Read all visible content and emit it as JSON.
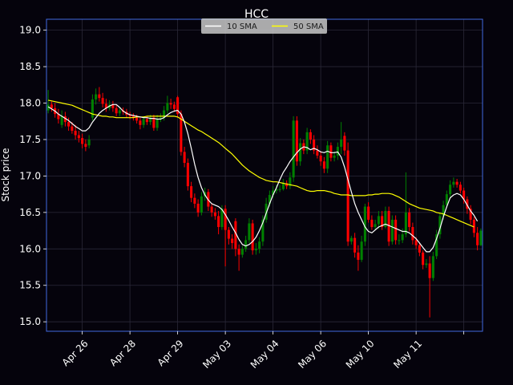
{
  "chart_data": {
    "type": "candlestick",
    "title": "HCC",
    "ylabel": "Stock price",
    "xlabel": "",
    "ylim": [
      14.87,
      19.15
    ],
    "yticks": [
      15.0,
      15.5,
      16.0,
      16.5,
      17.0,
      17.5,
      18.0,
      18.5,
      19.0
    ],
    "ytick_labels": [
      "15.0",
      "15.5",
      "16.0",
      "16.5",
      "17.0",
      "17.5",
      "18.0",
      "18.5",
      "19.0"
    ],
    "xticks": [
      {
        "label": "Apr 26",
        "index": 10
      },
      {
        "label": "Apr 28",
        "index": 24
      },
      {
        "label": "Apr 29",
        "index": 38
      },
      {
        "label": "May 03",
        "index": 52
      },
      {
        "label": "May 04",
        "index": 66
      },
      {
        "label": "May 06",
        "index": 80
      },
      {
        "label": "May 10",
        "index": 94
      },
      {
        "label": "May 11",
        "index": 108
      },
      {
        "label": "",
        "index": 122
      }
    ],
    "grid": true,
    "legend": {
      "location": "upper center",
      "entries": [
        {
          "name": "10 SMA",
          "color": "#ffffff"
        },
        {
          "name": "50 SMA",
          "color": "#ffff00"
        }
      ]
    },
    "colors": {
      "up": "#008000",
      "down": "#ff0000",
      "background": "#05030c",
      "axes_edge": "#4169e1",
      "grid": "#2a2838"
    },
    "candle_close": [
      17.98,
      17.93,
      17.85,
      17.78,
      17.82,
      17.74,
      17.68,
      17.62,
      17.56,
      17.52,
      17.44,
      17.4,
      17.5,
      18.05,
      18.12,
      18.07,
      17.99,
      17.93,
      17.98,
      17.93,
      17.86,
      17.9,
      17.88,
      17.84,
      17.82,
      17.8,
      17.76,
      17.7,
      17.78,
      17.74,
      17.8,
      17.66,
      17.78,
      17.8,
      17.9,
      18.0,
      17.98,
      17.92,
      17.85,
      17.33,
      17.18,
      16.86,
      16.7,
      16.62,
      16.5,
      16.72,
      16.78,
      16.58,
      16.5,
      16.45,
      16.3,
      16.55,
      16.26,
      16.14,
      16.08,
      16.0,
      15.92,
      16.0,
      16.12,
      16.35,
      15.98,
      16.0,
      16.1,
      16.4,
      16.62,
      16.74,
      16.8,
      16.82,
      16.82,
      16.9,
      16.86,
      16.98,
      17.76,
      17.2,
      17.45,
      17.35,
      17.6,
      17.5,
      17.35,
      17.28,
      17.2,
      17.1,
      17.42,
      17.25,
      17.28,
      17.4,
      17.5,
      17.35,
      16.1,
      16.15,
      15.95,
      15.85,
      16.1,
      16.58,
      16.4,
      16.3,
      16.34,
      16.45,
      16.3,
      16.52,
      16.1,
      16.4,
      16.12,
      16.12,
      16.2,
      16.5,
      16.3,
      16.12,
      16.05,
      15.95,
      15.78,
      15.8,
      15.6,
      15.9,
      16.2,
      16.45,
      16.6,
      16.75,
      16.88,
      16.92,
      16.88,
      16.8,
      16.68,
      16.55,
      16.4,
      16.22,
      16.05,
      16.25
    ],
    "candle_open": [
      17.9,
      17.98,
      17.93,
      17.85,
      17.7,
      17.82,
      17.74,
      17.68,
      17.62,
      17.56,
      17.52,
      17.44,
      17.42,
      17.8,
      18.05,
      18.12,
      18.07,
      17.99,
      17.93,
      17.98,
      17.93,
      17.86,
      17.9,
      17.88,
      17.84,
      17.82,
      17.8,
      17.76,
      17.7,
      17.78,
      17.74,
      17.8,
      17.66,
      17.78,
      17.8,
      17.9,
      18.0,
      17.98,
      18.08,
      17.85,
      17.33,
      17.18,
      16.86,
      16.7,
      16.62,
      16.5,
      16.72,
      16.78,
      16.58,
      16.5,
      16.45,
      16.3,
      16.55,
      16.26,
      16.14,
      16.38,
      16.0,
      15.92,
      16.0,
      16.12,
      16.35,
      15.98,
      16.0,
      16.1,
      16.4,
      16.62,
      16.74,
      16.8,
      16.82,
      16.82,
      16.9,
      16.86,
      16.98,
      17.76,
      17.2,
      17.45,
      17.35,
      17.6,
      17.5,
      17.35,
      17.28,
      17.2,
      17.1,
      17.42,
      17.25,
      17.28,
      17.4,
      17.55,
      17.35,
      16.1,
      16.15,
      15.95,
      15.85,
      16.1,
      16.58,
      16.4,
      16.3,
      16.34,
      16.45,
      16.3,
      16.52,
      16.1,
      16.4,
      16.12,
      16.12,
      16.2,
      16.5,
      16.3,
      16.12,
      16.05,
      15.95,
      15.78,
      15.8,
      15.6,
      15.9,
      16.2,
      16.45,
      16.6,
      16.75,
      16.88,
      16.92,
      16.88,
      16.8,
      16.68,
      16.55,
      16.4,
      16.22,
      16.05
    ],
    "candle_high": [
      18.18,
      18.02,
      18.0,
      17.92,
      17.9,
      17.88,
      17.8,
      17.74,
      17.7,
      17.62,
      17.58,
      17.5,
      17.56,
      18.12,
      18.2,
      18.22,
      18.14,
      18.06,
      18.04,
      18.03,
      17.98,
      17.94,
      17.94,
      17.92,
      17.88,
      17.86,
      17.84,
      17.8,
      17.82,
      17.82,
      17.84,
      17.84,
      17.84,
      17.86,
      17.96,
      18.1,
      18.06,
      18.02,
      18.1,
      17.9,
      17.4,
      17.24,
      16.92,
      16.76,
      16.68,
      16.78,
      16.84,
      16.82,
      16.62,
      16.56,
      16.52,
      16.6,
      16.6,
      16.3,
      16.2,
      16.42,
      16.06,
      16.04,
      16.18,
      16.42,
      16.4,
      16.08,
      16.16,
      16.46,
      16.7,
      16.8,
      16.86,
      16.88,
      16.88,
      16.96,
      16.94,
      17.05,
      17.82,
      17.82,
      17.52,
      17.5,
      17.66,
      17.64,
      17.56,
      17.42,
      17.34,
      17.26,
      17.48,
      17.46,
      17.34,
      17.46,
      17.74,
      17.6,
      17.46,
      16.18,
      16.22,
      16.05,
      16.18,
      16.62,
      16.64,
      16.46,
      16.4,
      16.52,
      16.52,
      16.58,
      16.58,
      16.46,
      16.46,
      16.2,
      16.28,
      17.05,
      16.56,
      16.36,
      16.16,
      16.08,
      15.98,
      15.86,
      15.9,
      15.96,
      16.26,
      16.5,
      16.66,
      16.8,
      16.94,
      16.98,
      16.96,
      16.92,
      16.84,
      16.72,
      16.6,
      16.44,
      16.3,
      16.28
    ],
    "candle_low": [
      17.86,
      17.88,
      17.8,
      17.72,
      17.66,
      17.68,
      17.62,
      17.58,
      17.5,
      17.46,
      17.38,
      17.34,
      17.38,
      17.76,
      17.98,
      18.02,
      17.94,
      17.88,
      17.9,
      17.88,
      17.82,
      17.82,
      17.84,
      17.8,
      17.78,
      17.76,
      17.72,
      17.64,
      17.66,
      17.7,
      17.7,
      17.62,
      17.62,
      17.74,
      17.76,
      17.86,
      17.92,
      17.88,
      17.8,
      17.28,
      17.12,
      16.8,
      16.64,
      16.56,
      16.44,
      16.46,
      16.66,
      16.52,
      16.44,
      16.4,
      16.2,
      16.26,
      15.76,
      16.06,
      16.0,
      15.9,
      15.7,
      15.88,
      15.96,
      16.08,
      15.92,
      15.92,
      15.94,
      16.04,
      16.36,
      16.58,
      16.7,
      16.76,
      16.78,
      16.8,
      16.82,
      16.82,
      16.92,
      17.14,
      17.14,
      17.3,
      17.3,
      17.44,
      17.3,
      17.24,
      17.14,
      17.04,
      17.04,
      17.2,
      17.2,
      17.22,
      17.3,
      17.28,
      16.04,
      16.06,
      15.88,
      15.7,
      15.82,
      16.04,
      16.36,
      16.26,
      16.26,
      16.28,
      16.26,
      16.28,
      16.04,
      16.06,
      16.06,
      16.06,
      16.08,
      16.16,
      16.24,
      16.06,
      16.0,
      15.9,
      15.72,
      15.74,
      15.06,
      15.56,
      15.86,
      16.14,
      16.4,
      16.56,
      16.7,
      16.84,
      16.84,
      16.76,
      16.62,
      16.48,
      16.34,
      16.16,
      15.98,
      16.04
    ],
    "sma10": [
      17.95,
      17.92,
      17.89,
      17.85,
      17.82,
      17.79,
      17.76,
      17.72,
      17.68,
      17.65,
      17.62,
      17.62,
      17.66,
      17.74,
      17.8,
      17.86,
      17.9,
      17.93,
      17.96,
      17.98,
      17.98,
      17.94,
      17.89,
      17.86,
      17.84,
      17.83,
      17.82,
      17.81,
      17.8,
      17.8,
      17.79,
      17.79,
      17.78,
      17.78,
      17.8,
      17.84,
      17.87,
      17.89,
      17.9,
      17.85,
      17.74,
      17.58,
      17.38,
      17.16,
      16.98,
      16.84,
      16.74,
      16.67,
      16.62,
      16.6,
      16.58,
      16.54,
      16.47,
      16.39,
      16.3,
      16.22,
      16.13,
      16.06,
      16.04,
      16.06,
      16.1,
      16.16,
      16.25,
      16.36,
      16.49,
      16.62,
      16.74,
      16.84,
      16.95,
      17.05,
      17.12,
      17.2,
      17.26,
      17.32,
      17.37,
      17.4,
      17.39,
      17.36,
      17.38,
      17.36,
      17.33,
      17.32,
      17.34,
      17.32,
      17.32,
      17.33,
      17.26,
      17.12,
      16.95,
      16.78,
      16.62,
      16.5,
      16.4,
      16.3,
      16.24,
      16.22,
      16.26,
      16.3,
      16.32,
      16.34,
      16.32,
      16.3,
      16.28,
      16.26,
      16.24,
      16.24,
      16.22,
      16.18,
      16.14,
      16.08,
      16.02,
      15.96,
      15.96,
      16.02,
      16.14,
      16.28,
      16.44,
      16.58,
      16.7,
      16.74,
      16.76,
      16.74,
      16.68,
      16.6,
      16.52,
      16.46,
      16.38
    ],
    "sma50": [
      18.04,
      18.03,
      18.02,
      18.01,
      18.0,
      17.99,
      17.98,
      17.97,
      17.95,
      17.93,
      17.91,
      17.89,
      17.87,
      17.85,
      17.84,
      17.83,
      17.82,
      17.82,
      17.81,
      17.81,
      17.8,
      17.8,
      17.8,
      17.8,
      17.8,
      17.8,
      17.81,
      17.81,
      17.81,
      17.82,
      17.82,
      17.82,
      17.82,
      17.82,
      17.82,
      17.82,
      17.82,
      17.82,
      17.81,
      17.78,
      17.75,
      17.72,
      17.69,
      17.66,
      17.63,
      17.61,
      17.58,
      17.55,
      17.52,
      17.49,
      17.46,
      17.42,
      17.38,
      17.34,
      17.3,
      17.25,
      17.2,
      17.15,
      17.11,
      17.07,
      17.04,
      17.01,
      16.98,
      16.96,
      16.94,
      16.93,
      16.92,
      16.92,
      16.91,
      16.9,
      16.89,
      16.88,
      16.87,
      16.86,
      16.84,
      16.82,
      16.8,
      16.79,
      16.79,
      16.8,
      16.8,
      16.8,
      16.79,
      16.78,
      16.76,
      16.75,
      16.74,
      16.74,
      16.74,
      16.73,
      16.73,
      16.73,
      16.73,
      16.73,
      16.74,
      16.74,
      16.75,
      16.75,
      16.76,
      16.76,
      16.76,
      16.75,
      16.73,
      16.71,
      16.68,
      16.65,
      16.62,
      16.6,
      16.58,
      16.56,
      16.55,
      16.54,
      16.53,
      16.52,
      16.5,
      16.49,
      16.48,
      16.46,
      16.44,
      16.42,
      16.4,
      16.38,
      16.36,
      16.34,
      16.32,
      16.3
    ]
  }
}
